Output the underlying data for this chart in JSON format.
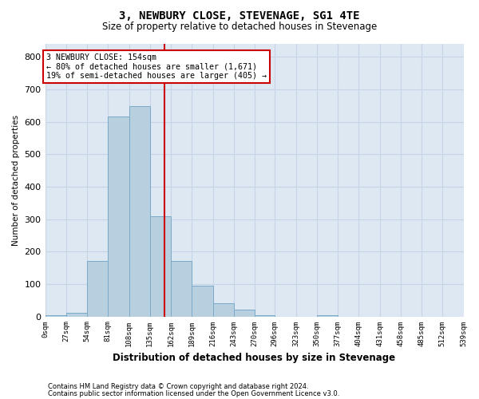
{
  "title": "3, NEWBURY CLOSE, STEVENAGE, SG1 4TE",
  "subtitle": "Size of property relative to detached houses in Stevenage",
  "xlabel": "Distribution of detached houses by size in Stevenage",
  "ylabel": "Number of detached properties",
  "property_size": 154,
  "annotation_label": "3 NEWBURY CLOSE: 154sqm",
  "annotation_line1": "← 80% of detached houses are smaller (1,671)",
  "annotation_line2": "19% of semi-detached houses are larger (405) →",
  "footer_line1": "Contains HM Land Registry data © Crown copyright and database right 2024.",
  "footer_line2": "Contains public sector information licensed under the Open Government Licence v3.0.",
  "bar_color": "#b8cfe0",
  "bar_edge_color": "#7aaac8",
  "grid_color": "#c5d5e5",
  "background_color": "#dde8f3",
  "annotation_box_edge": "#cc0000",
  "vline_color": "#cc0000",
  "bins": [
    0,
    27,
    54,
    81,
    108,
    135,
    162,
    189,
    216,
    243,
    270,
    296,
    323,
    350,
    377,
    404,
    431,
    458,
    485,
    512,
    539
  ],
  "bin_labels": [
    "0sqm",
    "27sqm",
    "54sqm",
    "81sqm",
    "108sqm",
    "135sqm",
    "162sqm",
    "189sqm",
    "216sqm",
    "243sqm",
    "270sqm",
    "296sqm",
    "323sqm",
    "350sqm",
    "377sqm",
    "404sqm",
    "431sqm",
    "458sqm",
    "485sqm",
    "512sqm",
    "539sqm"
  ],
  "counts": [
    5,
    10,
    170,
    615,
    648,
    310,
    172,
    95,
    40,
    20,
    5,
    0,
    0,
    5,
    0,
    0,
    0,
    0,
    0,
    0
  ],
  "ylim": [
    0,
    840
  ],
  "yticks": [
    0,
    100,
    200,
    300,
    400,
    500,
    600,
    700,
    800
  ]
}
